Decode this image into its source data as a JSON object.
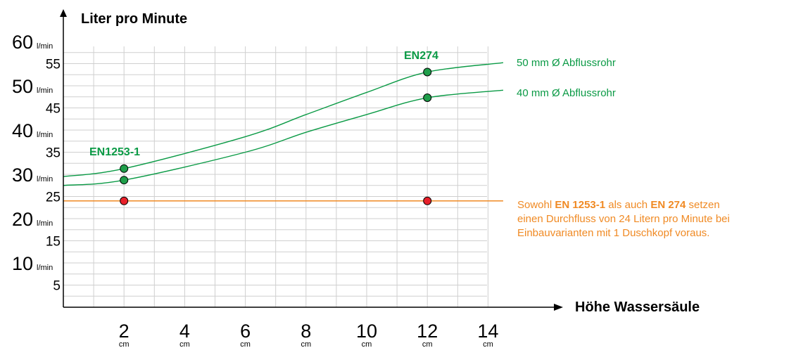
{
  "colors": {
    "green": "#0a9a45",
    "orange": "#f08a24",
    "red_point": "#e8202a",
    "green_point": "#1f9e4a"
  },
  "chart_data": {
    "type": "line",
    "ylabel": "Liter pro Minute",
    "xlabel": "Höhe Wassersäule",
    "xlim": [
      0,
      14
    ],
    "ylim": [
      0,
      60
    ],
    "grid": true,
    "x_ticks": [
      {
        "value": 2,
        "label": "2",
        "unit": "cm"
      },
      {
        "value": 4,
        "label": "4",
        "unit": "cm"
      },
      {
        "value": 6,
        "label": "6",
        "unit": "cm"
      },
      {
        "value": 8,
        "label": "8",
        "unit": "cm"
      },
      {
        "value": 10,
        "label": "10",
        "unit": "cm"
      },
      {
        "value": 12,
        "label": "12",
        "unit": "cm"
      },
      {
        "value": 14,
        "label": "14",
        "unit": "cm"
      }
    ],
    "y_ticks_major": [
      {
        "value": 10,
        "label": "10",
        "unit": "l/min"
      },
      {
        "value": 20,
        "label": "20",
        "unit": "l/min"
      },
      {
        "value": 30,
        "label": "30",
        "unit": "l/min"
      },
      {
        "value": 40,
        "label": "40",
        "unit": "l/min"
      },
      {
        "value": 50,
        "label": "50",
        "unit": "l/min"
      },
      {
        "value": 60,
        "label": "60",
        "unit": "l/min"
      }
    ],
    "y_ticks_minor": [
      {
        "value": 5,
        "label": "5"
      },
      {
        "value": 15,
        "label": "15"
      },
      {
        "value": 25,
        "label": "25"
      },
      {
        "value": 35,
        "label": "35"
      },
      {
        "value": 45,
        "label": "45"
      },
      {
        "value": 55,
        "label": "55"
      }
    ],
    "series": [
      {
        "name": "50 mm Ø Abflussrohr",
        "x": [
          0,
          2,
          6,
          8,
          10,
          12,
          14.5
        ],
        "y": [
          29.5,
          31.3,
          38.5,
          43.5,
          48.5,
          53.1,
          55.2
        ]
      },
      {
        "name": "40 mm Ø Abflussrohr",
        "x": [
          0,
          2,
          6,
          8,
          10,
          12,
          14.5
        ],
        "y": [
          27.5,
          28.7,
          35,
          39.5,
          43.5,
          47.3,
          49
        ]
      }
    ],
    "reference_line": {
      "y": 24,
      "x_end": 14.5
    },
    "points": [
      {
        "x": 2,
        "y": 31.3,
        "kind": "green"
      },
      {
        "x": 2,
        "y": 28.7,
        "kind": "green"
      },
      {
        "x": 12,
        "y": 53.1,
        "kind": "green"
      },
      {
        "x": 12,
        "y": 47.3,
        "kind": "green"
      },
      {
        "x": 2,
        "y": 24,
        "kind": "red"
      },
      {
        "x": 12,
        "y": 24,
        "kind": "red"
      }
    ],
    "annotations": {
      "en1253": "EN1253-1",
      "en274": "EN274",
      "note": [
        [
          {
            "t": "Sowohl "
          },
          {
            "t": "EN 1253-1",
            "b": true
          },
          {
            "t": " als auch "
          },
          {
            "t": "EN 274",
            "b": true
          },
          {
            "t": " setzen"
          }
        ],
        [
          {
            "t": "einen Durchfluss von 24 Litern pro Minute bei"
          }
        ],
        [
          {
            "t": "Einbauvarianten mit 1 Duschkopf voraus."
          }
        ]
      ]
    }
  }
}
